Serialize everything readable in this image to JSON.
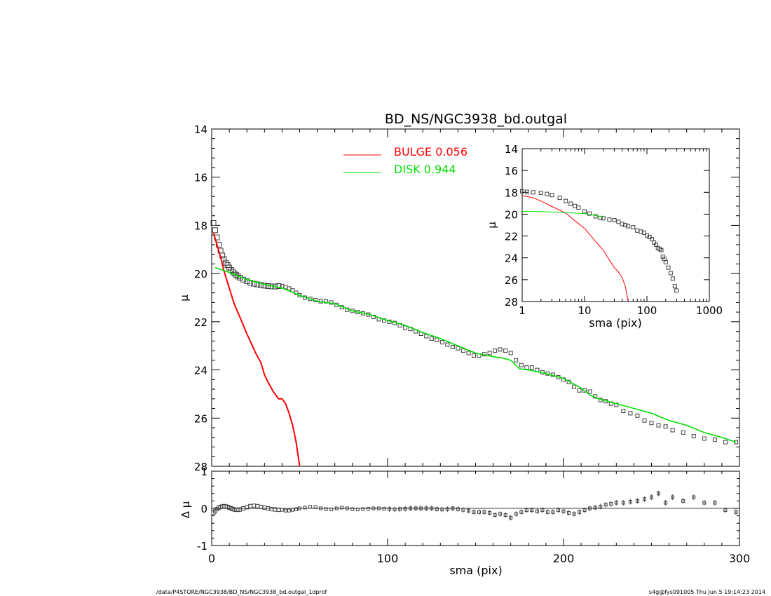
{
  "footer": {
    "left": "/data/P4STORE/NGC3938/BD_NS/NGC3938_bd.outgal_1dprof",
    "right": "s4g@fys091005  Thu Jun  5 19:14:23 2014"
  },
  "colors": {
    "bulge": "#ff0000",
    "disk": "#00e000",
    "data": "#404040",
    "axis": "#000000"
  },
  "chart_data": [
    {
      "id": "main",
      "type": "line",
      "title": "BD_NS/NGC3938_bd.outgal",
      "xlabel": "",
      "ylabel": "μ",
      "xlim": [
        0,
        300
      ],
      "ylim": [
        28,
        14
      ],
      "y_inverted": true,
      "xticks": [
        "0",
        "100",
        "200",
        "300"
      ],
      "yticks": [
        "14",
        "16",
        "18",
        "20",
        "22",
        "24",
        "26",
        "28"
      ],
      "legend": {
        "placement": "top-center",
        "entries": [
          {
            "name": "BULGE",
            "value": "0.056",
            "color": "#ff0000"
          },
          {
            "name": "DISK",
            "value": "0.944",
            "color": "#00e000"
          }
        ]
      },
      "series": [
        {
          "name": "BULGE",
          "color": "#ff0000",
          "x": [
            1,
            3,
            5,
            7,
            10,
            13,
            16,
            20,
            25,
            28,
            30,
            32,
            35,
            38,
            40,
            42,
            44,
            46,
            48,
            50
          ],
          "y": [
            18.3,
            18.8,
            19.3,
            19.9,
            20.6,
            21.3,
            21.8,
            22.5,
            23.3,
            23.7,
            24.2,
            24.5,
            24.9,
            25.2,
            25.2,
            25.4,
            25.8,
            26.3,
            27.0,
            28.0
          ]
        },
        {
          "name": "DISK",
          "color": "#00e000",
          "x": [
            2,
            10,
            20,
            30,
            40,
            50,
            60,
            70,
            80,
            90,
            100,
            110,
            120,
            130,
            140,
            150,
            160,
            165,
            170,
            175,
            180,
            190,
            200,
            210,
            215,
            220,
            230,
            240,
            250,
            260,
            270,
            280,
            290,
            298
          ],
          "y": [
            19.75,
            19.95,
            20.25,
            20.45,
            20.6,
            20.9,
            21.15,
            21.25,
            21.55,
            21.7,
            21.95,
            22.15,
            22.45,
            22.7,
            23.0,
            23.3,
            23.45,
            23.5,
            23.6,
            23.95,
            24.0,
            24.15,
            24.35,
            24.75,
            25.05,
            25.2,
            25.4,
            25.6,
            25.8,
            26.1,
            26.3,
            26.6,
            26.8,
            27.0
          ]
        },
        {
          "name": "",
          "kind": "markers",
          "x": [
            1,
            2,
            3,
            4,
            5,
            6,
            7,
            8,
            9,
            10,
            11,
            12,
            13,
            14,
            15,
            16,
            18,
            20,
            22,
            24,
            26,
            28,
            30,
            32,
            34,
            36,
            38,
            40,
            42,
            44,
            46,
            48,
            50,
            53,
            56,
            59,
            62,
            65,
            68,
            71,
            74,
            77,
            80,
            83,
            86,
            89,
            92,
            95,
            98,
            101,
            104,
            107,
            110,
            113,
            116,
            119,
            122,
            125,
            128,
            131,
            134,
            137,
            140,
            143,
            146,
            149,
            152,
            155,
            158,
            161,
            164,
            167,
            170,
            173,
            176,
            179,
            182,
            185,
            188,
            191,
            194,
            197,
            200,
            203,
            206,
            209,
            212,
            215,
            218,
            221,
            224,
            227,
            230,
            234,
            238,
            242,
            246,
            250,
            254,
            258,
            262,
            268,
            274,
            280,
            286,
            292,
            298
          ],
          "y": [
            17.9,
            18.2,
            18.5,
            18.8,
            19.05,
            19.25,
            19.4,
            19.55,
            19.65,
            19.75,
            19.85,
            19.92,
            20.0,
            20.06,
            20.12,
            20.17,
            20.25,
            20.32,
            20.38,
            20.42,
            20.45,
            20.48,
            20.5,
            20.52,
            20.53,
            20.54,
            20.52,
            20.52,
            20.56,
            20.62,
            20.7,
            20.8,
            20.9,
            21.0,
            21.05,
            21.1,
            21.15,
            21.15,
            21.2,
            21.3,
            21.4,
            21.5,
            21.55,
            21.6,
            21.65,
            21.7,
            21.8,
            21.9,
            21.95,
            22.0,
            22.05,
            22.15,
            22.25,
            22.3,
            22.4,
            22.5,
            22.6,
            22.7,
            22.75,
            22.85,
            22.95,
            23.05,
            23.1,
            23.2,
            23.3,
            23.4,
            23.4,
            23.35,
            23.3,
            23.2,
            23.15,
            23.2,
            23.3,
            23.6,
            23.8,
            23.9,
            23.9,
            24.0,
            24.1,
            24.15,
            24.2,
            24.3,
            24.4,
            24.5,
            24.7,
            24.85,
            24.85,
            24.9,
            25.1,
            25.25,
            25.3,
            25.4,
            25.45,
            25.7,
            25.8,
            25.9,
            26.1,
            26.2,
            26.3,
            26.35,
            26.5,
            26.6,
            26.75,
            26.85,
            26.9,
            27.0,
            27.0
          ]
        }
      ]
    },
    {
      "id": "residual",
      "type": "scatter",
      "title": "",
      "xlabel": "sma (pix)",
      "ylabel": "Δ μ",
      "xlim": [
        0,
        300
      ],
      "ylim": [
        -1,
        1
      ],
      "xticks": [
        "0",
        "100",
        "200",
        "300"
      ],
      "yticks": [
        "1",
        "0",
        "-1"
      ],
      "zero_line": true,
      "series": [
        {
          "name": "",
          "x": [
            1,
            2,
            3,
            4,
            5,
            6,
            7,
            8,
            9,
            10,
            11,
            12,
            13,
            14,
            15,
            16,
            18,
            20,
            22,
            24,
            26,
            28,
            30,
            32,
            34,
            36,
            38,
            40,
            42,
            44,
            46,
            48,
            50,
            53,
            56,
            59,
            62,
            65,
            68,
            71,
            74,
            77,
            80,
            83,
            86,
            89,
            92,
            95,
            98,
            101,
            104,
            107,
            110,
            113,
            116,
            119,
            122,
            125,
            128,
            131,
            134,
            137,
            140,
            143,
            146,
            149,
            152,
            155,
            158,
            161,
            164,
            167,
            170,
            173,
            176,
            179,
            182,
            185,
            188,
            191,
            194,
            197,
            200,
            203,
            206,
            209,
            212,
            215,
            218,
            221,
            224,
            227,
            230,
            234,
            238,
            242,
            246,
            250,
            254,
            258,
            262,
            268,
            274,
            280,
            286,
            292,
            298
          ],
          "y": [
            -0.12,
            -0.08,
            -0.02,
            0.02,
            0.04,
            0.05,
            0.06,
            0.05,
            0.04,
            0.02,
            0.0,
            -0.02,
            -0.03,
            -0.04,
            -0.04,
            -0.03,
            0.0,
            0.03,
            0.06,
            0.07,
            0.06,
            0.04,
            0.02,
            0.0,
            -0.02,
            -0.03,
            -0.04,
            -0.04,
            -0.06,
            -0.06,
            -0.04,
            -0.02,
            0.0,
            0.02,
            0.04,
            0.03,
            0.0,
            -0.02,
            -0.03,
            0.0,
            0.02,
            0.0,
            -0.02,
            -0.03,
            -0.02,
            -0.01,
            0.0,
            0.0,
            -0.01,
            -0.02,
            -0.03,
            -0.02,
            -0.01,
            0.0,
            0.0,
            0.0,
            0.0,
            0.0,
            -0.02,
            -0.03,
            -0.02,
            0.0,
            -0.02,
            -0.04,
            -0.06,
            -0.1,
            -0.1,
            -0.1,
            -0.12,
            -0.18,
            -0.15,
            -0.18,
            -0.25,
            -0.15,
            -0.1,
            -0.05,
            -0.05,
            -0.08,
            -0.05,
            -0.1,
            -0.1,
            -0.05,
            -0.08,
            -0.12,
            -0.15,
            -0.1,
            -0.05,
            0.0,
            0.02,
            0.05,
            0.1,
            0.12,
            0.15,
            0.15,
            0.18,
            0.2,
            0.25,
            0.3,
            0.4,
            0.15,
            0.3,
            0.2,
            0.3,
            0.15,
            0.15,
            -0.05,
            -0.1
          ]
        }
      ]
    },
    {
      "id": "inset",
      "type": "line",
      "title": "",
      "xlabel": "sma (pix)",
      "ylabel": "μ",
      "xscale": "log",
      "xlim": [
        1,
        1000
      ],
      "ylim": [
        28,
        14
      ],
      "y_inverted": true,
      "xticks": [
        "1",
        "10",
        "100",
        "1000"
      ],
      "yticks": [
        "14",
        "16",
        "18",
        "20",
        "22",
        "24",
        "26",
        "28"
      ],
      "series": [
        {
          "name": "BULGE",
          "color": "#ff0000",
          "x": [
            1,
            1.5,
            2,
            3,
            5,
            7,
            10,
            15,
            20,
            25,
            30,
            35,
            40,
            45,
            50
          ],
          "y": [
            18.3,
            18.5,
            18.8,
            19.3,
            19.9,
            20.6,
            21.3,
            22.5,
            23.3,
            24.2,
            24.9,
            25.3,
            25.8,
            26.6,
            28.0
          ]
        },
        {
          "name": "DISK",
          "color": "#00e000",
          "x": [
            1,
            2,
            5,
            10,
            20
          ],
          "y": [
            19.75,
            19.77,
            19.85,
            19.95,
            20.25
          ]
        },
        {
          "name": "",
          "kind": "markers",
          "x": [
            1,
            1.2,
            1.5,
            2,
            2.5,
            3,
            4,
            5,
            6,
            7,
            8,
            10,
            12,
            15,
            18,
            20,
            25,
            30,
            35,
            40,
            45,
            50,
            60,
            70,
            80,
            90,
            100,
            110,
            120,
            130,
            140,
            150,
            160,
            170,
            180,
            190,
            200,
            220,
            240,
            260,
            280,
            298
          ],
          "y": [
            17.9,
            17.95,
            18.0,
            18.05,
            18.15,
            18.25,
            18.5,
            18.8,
            19.05,
            19.25,
            19.4,
            19.75,
            19.95,
            20.2,
            20.35,
            20.38,
            20.5,
            20.55,
            20.7,
            20.9,
            21.0,
            21.1,
            21.2,
            21.5,
            21.6,
            21.7,
            21.95,
            22.1,
            22.3,
            22.6,
            22.8,
            23.1,
            23.2,
            23.3,
            23.9,
            24.1,
            24.4,
            24.9,
            25.4,
            25.9,
            26.6,
            27.0
          ]
        }
      ]
    }
  ]
}
